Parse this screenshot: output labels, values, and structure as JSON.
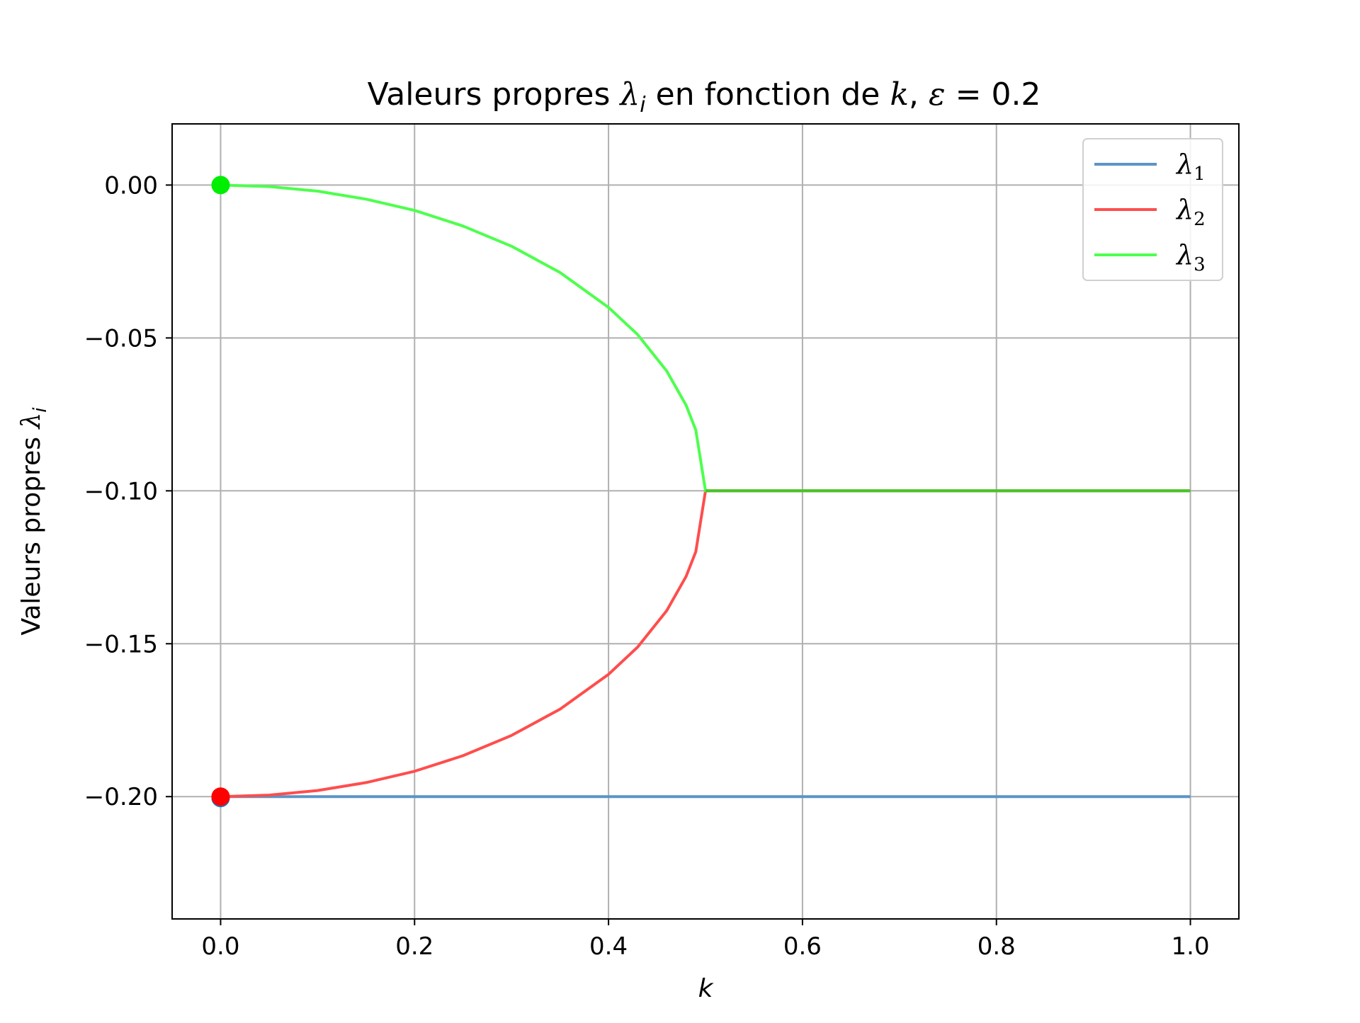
{
  "chart_data": {
    "type": "line",
    "title": "Valeurs propres λᵢ en fonction de k, ε = 0.2",
    "xlabel": "k",
    "ylabel": "Valeurs propres λᵢ",
    "xlim": [
      -0.05,
      1.05
    ],
    "ylim": [
      -0.24,
      0.02
    ],
    "xticks": [
      0.0,
      0.2,
      0.4,
      0.6,
      0.8,
      1.0
    ],
    "xtick_labels": [
      "0.0",
      "0.2",
      "0.4",
      "0.6",
      "0.8",
      "1.0"
    ],
    "yticks": [
      0.0,
      -0.05,
      -0.1,
      -0.15,
      -0.2
    ],
    "ytick_labels": [
      "0.00",
      "−0.05",
      "−0.10",
      "−0.15",
      "−0.20"
    ],
    "grid": true,
    "legend_position": "top-right",
    "series": [
      {
        "name": "λ₁",
        "color": "#5a95c5",
        "x": [
          0.0,
          1.0
        ],
        "y": [
          -0.2,
          -0.2
        ]
      },
      {
        "name": "λ₂",
        "color": "#ff4d4d",
        "x": [
          0.0,
          0.05,
          0.1,
          0.15,
          0.2,
          0.25,
          0.3,
          0.35,
          0.4,
          0.43,
          0.46,
          0.48,
          0.49,
          0.5,
          1.0
        ],
        "y": [
          -0.2,
          -0.1995,
          -0.198,
          -0.1954,
          -0.1917,
          -0.1866,
          -0.18,
          -0.1714,
          -0.16,
          -0.1511,
          -0.1392,
          -0.128,
          -0.1199,
          -0.1,
          -0.1
        ]
      },
      {
        "name": "λ₃",
        "color": "#4dff4d",
        "x": [
          0.0,
          0.05,
          0.1,
          0.15,
          0.2,
          0.25,
          0.3,
          0.35,
          0.4,
          0.43,
          0.46,
          0.48,
          0.49,
          0.5,
          1.0
        ],
        "y": [
          0.0,
          -0.0005,
          -0.002,
          -0.0046,
          -0.0083,
          -0.0134,
          -0.02,
          -0.0286,
          -0.04,
          -0.0489,
          -0.0608,
          -0.072,
          -0.0801,
          -0.1,
          -0.1
        ]
      }
    ],
    "overlap_segment": {
      "color": "#4cc22a",
      "x": [
        0.5,
        1.0
      ],
      "y": [
        -0.1,
        -0.1
      ]
    },
    "markers": [
      {
        "series": "λ₁",
        "x": 0.0,
        "y": -0.2,
        "color": "#1f77b4"
      },
      {
        "series": "λ₂",
        "x": 0.0,
        "y": -0.2,
        "color": "#ff0000"
      },
      {
        "series": "λ₃",
        "x": 0.0,
        "y": 0.0,
        "color": "#00ee00"
      }
    ],
    "legend": [
      {
        "label_base": "λ",
        "label_sub": "1",
        "color": "#5a95c5"
      },
      {
        "label_base": "λ",
        "label_sub": "2",
        "color": "#ff4d4d"
      },
      {
        "label_base": "λ",
        "label_sub": "3",
        "color": "#4dff4d"
      }
    ]
  }
}
